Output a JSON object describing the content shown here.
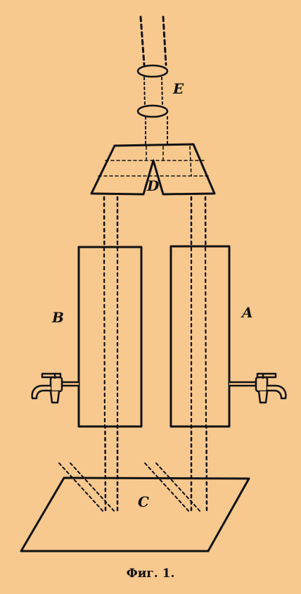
{
  "background": "#f7c98f",
  "ink": "#111111",
  "labels": {
    "eyepiece": "E",
    "prism": "D",
    "tube_right": "A",
    "tube_left": "B",
    "plate": "C"
  },
  "caption": "Фиг. 1."
}
